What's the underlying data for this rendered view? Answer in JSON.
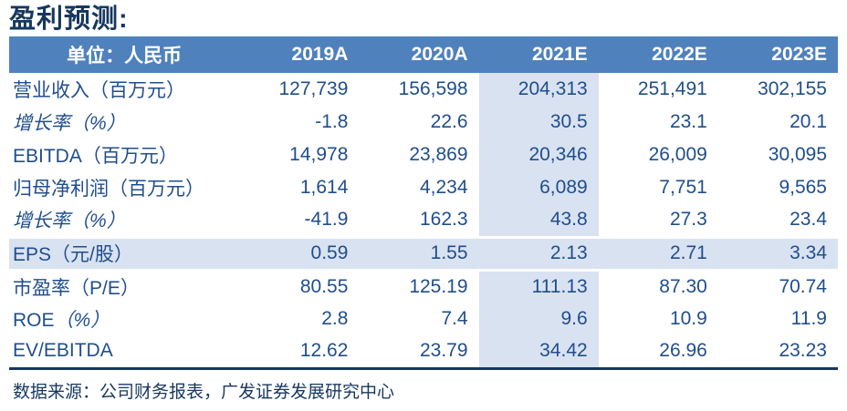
{
  "title": "盈利预测:",
  "table": {
    "header": {
      "unit_label": "单位：人民币",
      "columns": [
        "2019A",
        "2020A",
        "2021E",
        "2022E",
        "2023E"
      ]
    },
    "highlight_column_index": 2,
    "rows": [
      {
        "label_parts": [
          {
            "text": "营业收入（百万元）",
            "italic": false
          }
        ],
        "highlight_row": false,
        "values": [
          "127,739",
          "156,598",
          "204,313",
          "251,491",
          "302,155"
        ]
      },
      {
        "label_parts": [
          {
            "text": "增长率（%）",
            "italic": true
          }
        ],
        "highlight_row": false,
        "values": [
          "-1.8",
          "22.6",
          "30.5",
          "23.1",
          "20.1"
        ]
      },
      {
        "label_parts": [
          {
            "text": "EBITDA（百万元）",
            "italic": false
          }
        ],
        "highlight_row": false,
        "values": [
          "14,978",
          "23,869",
          "20,346",
          "26,009",
          "30,095"
        ]
      },
      {
        "label_parts": [
          {
            "text": "归母净利润（百万元）",
            "italic": false
          }
        ],
        "highlight_row": false,
        "values": [
          "1,614",
          "4,234",
          "6,089",
          "7,751",
          "9,565"
        ]
      },
      {
        "label_parts": [
          {
            "text": "增长率（%）",
            "italic": true
          }
        ],
        "highlight_row": false,
        "values": [
          "-41.9",
          "162.3",
          "43.8",
          "27.3",
          "23.4"
        ]
      },
      {
        "label_parts": [
          {
            "text": "EPS（元/股）",
            "italic": false
          }
        ],
        "highlight_row": true,
        "values": [
          "0.59",
          "1.55",
          "2.13",
          "2.71",
          "3.34"
        ]
      },
      {
        "label_parts": [
          {
            "text": "市盈率（P/E）",
            "italic": false
          }
        ],
        "highlight_row": false,
        "values": [
          "80.55",
          "125.19",
          "111.13",
          "87.30",
          "70.74"
        ]
      },
      {
        "label_parts": [
          {
            "text": "ROE",
            "italic": false
          },
          {
            "text": "（%）",
            "italic": true
          }
        ],
        "highlight_row": false,
        "values": [
          "2.8",
          "7.4",
          "9.6",
          "10.9",
          "11.9"
        ]
      },
      {
        "label_parts": [
          {
            "text": "EV/EBITDA",
            "italic": false
          }
        ],
        "highlight_row": false,
        "values": [
          "12.62",
          "23.79",
          "34.42",
          "26.96",
          "23.23"
        ]
      }
    ]
  },
  "footer": {
    "source": "数据来源：公司财务报表，广发证券发展研究中心"
  },
  "colors": {
    "header_bg": "#4F81BD",
    "header_text": "#FFFFFF",
    "highlight_bg": "#D9E2F1",
    "table_text": "#1F4E8C",
    "title_text": "#17375E",
    "border": "#17375E"
  }
}
